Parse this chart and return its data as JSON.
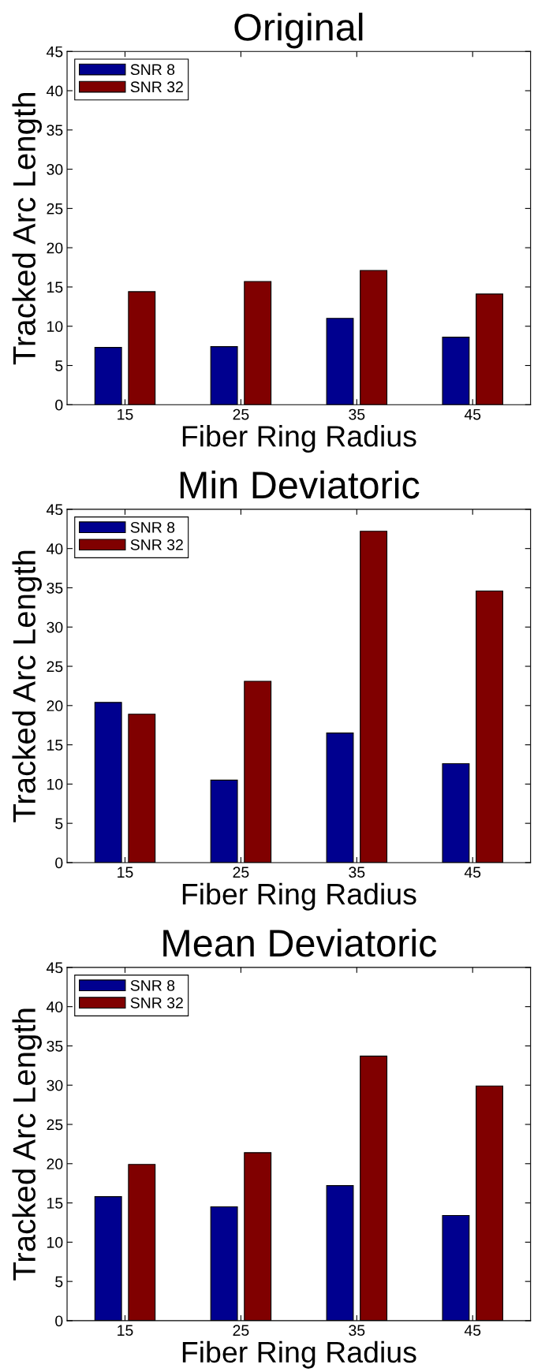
{
  "chart_data": [
    {
      "type": "bar",
      "title": "Original",
      "xlabel": "Fiber Ring Radius",
      "ylabel": "Tracked Arc Length",
      "categories": [
        "15",
        "25",
        "35",
        "45"
      ],
      "ylim": [
        0,
        45
      ],
      "yticks": [
        0,
        5,
        10,
        15,
        20,
        25,
        30,
        35,
        40,
        45
      ],
      "legend": "top left",
      "grid": false,
      "series": [
        {
          "name": "SNR 8",
          "color": "#00008f",
          "values": [
            7.3,
            7.4,
            11.0,
            8.6
          ]
        },
        {
          "name": "SNR 32",
          "color": "#800000",
          "values": [
            14.4,
            15.7,
            17.1,
            14.1
          ]
        }
      ]
    },
    {
      "type": "bar",
      "title": "Min Deviatoric",
      "xlabel": "Fiber Ring Radius",
      "ylabel": "Tracked Arc Length",
      "categories": [
        "15",
        "25",
        "35",
        "45"
      ],
      "ylim": [
        0,
        45
      ],
      "yticks": [
        0,
        5,
        10,
        15,
        20,
        25,
        30,
        35,
        40,
        45
      ],
      "legend": "top left",
      "grid": false,
      "series": [
        {
          "name": "SNR 8",
          "color": "#00008f",
          "values": [
            20.4,
            10.5,
            16.5,
            12.6
          ]
        },
        {
          "name": "SNR 32",
          "color": "#800000",
          "values": [
            18.9,
            23.1,
            42.2,
            34.6
          ]
        }
      ]
    },
    {
      "type": "bar",
      "title": "Mean Deviatoric",
      "xlabel": "Fiber Ring Radius",
      "ylabel": "Tracked Arc Length",
      "categories": [
        "15",
        "25",
        "35",
        "45"
      ],
      "ylim": [
        0,
        45
      ],
      "yticks": [
        0,
        5,
        10,
        15,
        20,
        25,
        30,
        35,
        40,
        45
      ],
      "legend": "top left",
      "grid": false,
      "series": [
        {
          "name": "SNR 8",
          "color": "#00008f",
          "values": [
            15.8,
            14.5,
            17.2,
            13.4
          ]
        },
        {
          "name": "SNR 32",
          "color": "#800000",
          "values": [
            19.9,
            21.4,
            33.7,
            29.9
          ]
        }
      ]
    }
  ]
}
